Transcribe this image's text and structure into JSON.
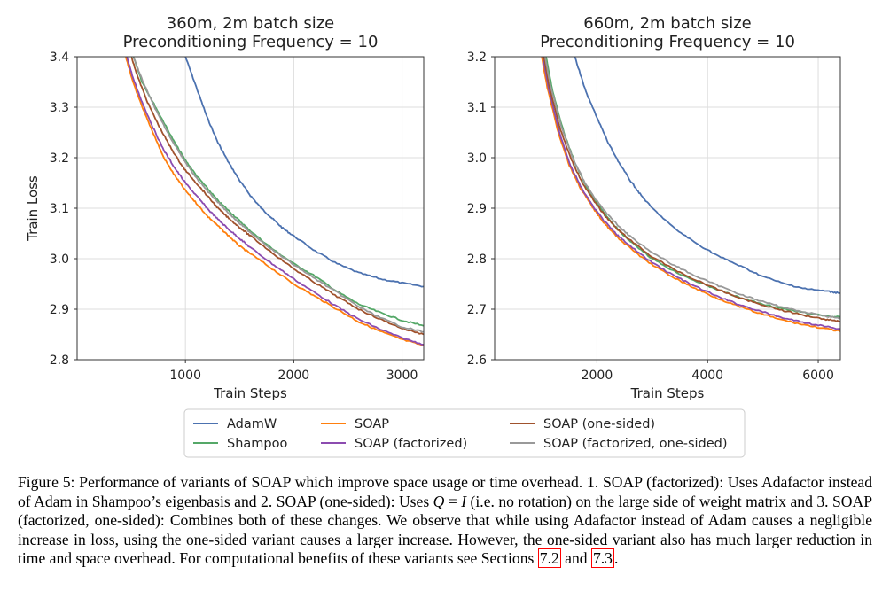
{
  "chart_data": [
    {
      "type": "line",
      "title": "360m, 2m batch size\nPreconditioning Frequency = 10",
      "xlabel": "Train Steps",
      "ylabel": "Train Loss",
      "xlim": [
        0,
        3200
      ],
      "ylim": [
        2.8,
        3.4
      ],
      "xticks": [
        1000,
        2000,
        3000
      ],
      "yticks": [
        2.8,
        2.9,
        3.0,
        3.1,
        3.2,
        3.3,
        3.4
      ],
      "grid": true,
      "series": [
        {
          "name": "AdamW",
          "x": [
            1000,
            1100,
            1200,
            1300,
            1400,
            1500,
            1600,
            1700,
            1800,
            1900,
            2000,
            2200,
            2400,
            2600,
            2800,
            3000,
            3200
          ],
          "y": [
            3.4,
            3.34,
            3.28,
            3.23,
            3.19,
            3.155,
            3.125,
            3.1,
            3.08,
            3.06,
            3.045,
            3.015,
            2.99,
            2.972,
            2.96,
            2.952,
            2.945
          ]
        },
        {
          "name": "Shampoo",
          "x": [
            520,
            600,
            700,
            800,
            900,
            1000,
            1100,
            1200,
            1300,
            1400,
            1500,
            1600,
            1800,
            2000,
            2200,
            2400,
            2600,
            2800,
            3000,
            3200
          ],
          "y": [
            3.4,
            3.35,
            3.31,
            3.27,
            3.23,
            3.195,
            3.165,
            3.14,
            3.115,
            3.095,
            3.075,
            3.055,
            3.02,
            2.99,
            2.965,
            2.935,
            2.91,
            2.893,
            2.878,
            2.867
          ]
        },
        {
          "name": "SOAP",
          "x": [
            450,
            500,
            600,
            700,
            800,
            900,
            1000,
            1100,
            1200,
            1300,
            1400,
            1500,
            1600,
            1800,
            2000,
            2200,
            2400,
            2600,
            2800,
            3000,
            3200
          ],
          "y": [
            3.4,
            3.36,
            3.3,
            3.25,
            3.2,
            3.165,
            3.135,
            3.11,
            3.085,
            3.065,
            3.045,
            3.025,
            3.01,
            2.98,
            2.95,
            2.925,
            2.9,
            2.875,
            2.856,
            2.84,
            2.828
          ]
        },
        {
          "name": "SOAP (factorized)",
          "x": [
            460,
            520,
            600,
            700,
            800,
            900,
            1000,
            1100,
            1200,
            1300,
            1400,
            1500,
            1600,
            1800,
            2000,
            2200,
            2400,
            2600,
            2800,
            3000,
            3200
          ],
          "y": [
            3.4,
            3.355,
            3.31,
            3.26,
            3.215,
            3.18,
            3.15,
            3.125,
            3.1,
            3.078,
            3.058,
            3.04,
            3.022,
            2.99,
            2.96,
            2.932,
            2.905,
            2.88,
            2.86,
            2.843,
            2.83
          ]
        },
        {
          "name": "SOAP (one-sided)",
          "x": [
            500,
            560,
            650,
            750,
            850,
            950,
            1000,
            1100,
            1200,
            1300,
            1400,
            1500,
            1600,
            1800,
            2000,
            2200,
            2400,
            2600,
            2800,
            3000,
            3200
          ],
          "y": [
            3.4,
            3.36,
            3.31,
            3.265,
            3.225,
            3.19,
            3.175,
            3.15,
            3.125,
            3.1,
            3.08,
            3.062,
            3.045,
            3.012,
            2.98,
            2.952,
            2.925,
            2.9,
            2.88,
            2.862,
            2.85
          ]
        },
        {
          "name": "SOAP (factorized, one-sided)",
          "x": [
            520,
            580,
            660,
            760,
            860,
            960,
            1000,
            1100,
            1200,
            1300,
            1400,
            1500,
            1600,
            1800,
            2000,
            2200,
            2400,
            2600,
            2800,
            3000,
            3200
          ],
          "y": [
            3.4,
            3.365,
            3.325,
            3.28,
            3.24,
            3.205,
            3.19,
            3.16,
            3.135,
            3.112,
            3.09,
            3.07,
            3.052,
            3.018,
            2.988,
            2.96,
            2.933,
            2.905,
            2.883,
            2.865,
            2.855
          ]
        }
      ]
    },
    {
      "type": "line",
      "title": "660m, 2m batch size\nPreconditioning Frequency = 10",
      "xlabel": "Train Steps",
      "ylabel": "",
      "xlim": [
        150,
        6400
      ],
      "ylim": [
        2.6,
        3.2
      ],
      "xticks": [
        2000,
        4000,
        6000
      ],
      "yticks": [
        2.6,
        2.7,
        2.8,
        2.9,
        3.0,
        3.1,
        3.2
      ],
      "grid": true,
      "series": [
        {
          "name": "AdamW",
          "x": [
            1600,
            1800,
            2000,
            2200,
            2400,
            2600,
            2800,
            3000,
            3400,
            3800,
            4200,
            4600,
            5000,
            5400,
            5800,
            6200,
            6400
          ],
          "y": [
            3.2,
            3.13,
            3.08,
            3.03,
            2.99,
            2.955,
            2.925,
            2.9,
            2.86,
            2.83,
            2.805,
            2.785,
            2.765,
            2.75,
            2.74,
            2.735,
            2.732
          ]
        },
        {
          "name": "Shampoo",
          "x": [
            1080,
            1200,
            1400,
            1600,
            1800,
            2000,
            2200,
            2400,
            2600,
            3000,
            3400,
            3800,
            4200,
            4600,
            5000,
            5400,
            5800,
            6200,
            6400
          ],
          "y": [
            3.2,
            3.13,
            3.05,
            2.99,
            2.945,
            2.91,
            2.88,
            2.855,
            2.835,
            2.8,
            2.775,
            2.755,
            2.738,
            2.722,
            2.71,
            2.7,
            2.692,
            2.686,
            2.684
          ]
        },
        {
          "name": "SOAP",
          "x": [
            1000,
            1100,
            1300,
            1500,
            1700,
            1900,
            2100,
            2300,
            2500,
            2900,
            3300,
            3700,
            4100,
            4500,
            4900,
            5300,
            5700,
            6100,
            6400
          ],
          "y": [
            3.2,
            3.14,
            3.05,
            2.985,
            2.94,
            2.905,
            2.875,
            2.85,
            2.83,
            2.795,
            2.768,
            2.745,
            2.725,
            2.708,
            2.693,
            2.68,
            2.67,
            2.662,
            2.656
          ]
        },
        {
          "name": "SOAP (factorized)",
          "x": [
            1020,
            1120,
            1320,
            1520,
            1720,
            1920,
            2120,
            2320,
            2520,
            2920,
            3320,
            3720,
            4120,
            4520,
            4920,
            5320,
            5720,
            6120,
            6400
          ],
          "y": [
            3.2,
            3.14,
            3.05,
            2.985,
            2.94,
            2.905,
            2.876,
            2.852,
            2.832,
            2.798,
            2.771,
            2.748,
            2.728,
            2.711,
            2.697,
            2.684,
            2.674,
            2.666,
            2.661
          ]
        },
        {
          "name": "SOAP (one-sided)",
          "x": [
            1040,
            1140,
            1340,
            1540,
            1740,
            1940,
            2140,
            2340,
            2540,
            2940,
            3340,
            3740,
            4140,
            4540,
            4940,
            5340,
            5740,
            6140,
            6400
          ],
          "y": [
            3.2,
            3.14,
            3.055,
            2.995,
            2.95,
            2.915,
            2.886,
            2.862,
            2.842,
            2.808,
            2.782,
            2.76,
            2.741,
            2.724,
            2.71,
            2.698,
            2.688,
            2.68,
            2.676
          ]
        },
        {
          "name": "SOAP (factorized, one-sided)",
          "x": [
            1060,
            1160,
            1360,
            1560,
            1760,
            1960,
            2160,
            2360,
            2560,
            2960,
            3360,
            3760,
            4160,
            4560,
            4960,
            5360,
            5760,
            6160,
            6400
          ],
          "y": [
            3.2,
            3.142,
            3.06,
            3.0,
            2.955,
            2.92,
            2.892,
            2.868,
            2.848,
            2.815,
            2.789,
            2.767,
            2.748,
            2.731,
            2.716,
            2.704,
            2.694,
            2.686,
            2.682
          ]
        }
      ]
    }
  ],
  "legend": {
    "placement": "bottom",
    "entries": [
      {
        "label": "AdamW",
        "color": "#4c72b0"
      },
      {
        "label": "Shampoo",
        "color": "#55a868"
      },
      {
        "label": "SOAP",
        "color": "#ff7f0e"
      },
      {
        "label": "SOAP (factorized)",
        "color": "#8c4cb0"
      },
      {
        "label": "SOAP (one-sided)",
        "color": "#a0522d"
      },
      {
        "label": "SOAP (factorized, one-sided)",
        "color": "#999999"
      }
    ]
  },
  "caption": {
    "p1": "Figure 5: Performance of variants of SOAP which improve space usage or time overhead. 1. SOAP (factorized): Uses Adafactor instead of Adam in Shampoo’s eigenbasis and 2.  SOAP (one-sided): Uses ",
    "math_q": "Q",
    "math_eq": " = ",
    "math_i": "I",
    "p2": " (i.e.  no rotation) on the large side of weight matrix and 3.  SOAP (factorized, one-sided): Combines both of these changes. We observe that while using Adafactor instead of Adam causes a negligible increase in loss, using the one-sided variant causes a larger increase.  However, the one-sided variant also has much larger reduction in time and space overhead.  For computational benefits of these variants see Sections ",
    "ref1": "7.2",
    "and": " and ",
    "ref2": "7.3",
    "end": "."
  }
}
